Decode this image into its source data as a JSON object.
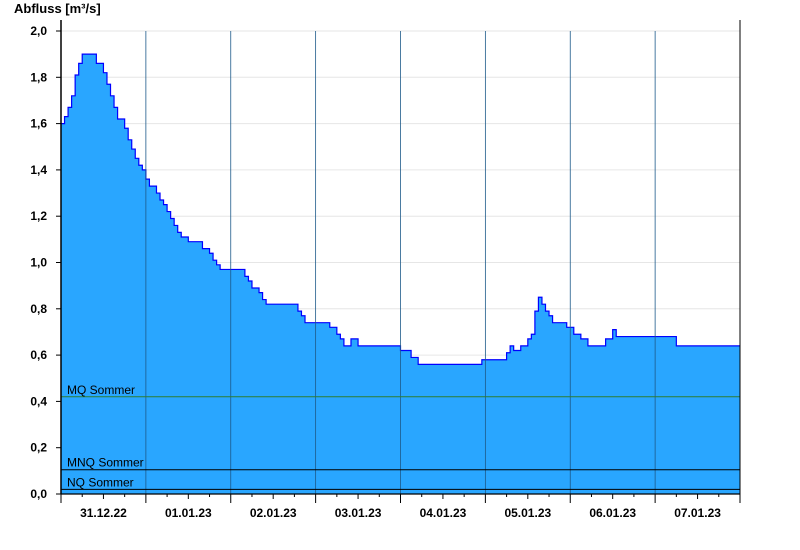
{
  "chart_data": {
    "type": "area",
    "ylabel": "Abfluss [m³/s]",
    "ylim": [
      0,
      2.0
    ],
    "yticks": [
      "0,0",
      "0,2",
      "0,4",
      "0,6",
      "0,8",
      "1,0",
      "1,2",
      "1,4",
      "1,6",
      "1,8",
      "2,0"
    ],
    "xlim": [
      "2022-12-31T00:00",
      "2023-01-08T00:00"
    ],
    "xtick_labels": [
      "31.12.22",
      "01.01.23",
      "02.01.23",
      "03.01.23",
      "04.01.23",
      "05.01.23",
      "06.01.23",
      "07.01.23"
    ],
    "grid": true,
    "colors": {
      "fill": "#29a6ff",
      "line": "#0000ff"
    },
    "reference_lines": [
      {
        "label": "MQ Sommer",
        "value": 0.42,
        "color": "#2e7d32"
      },
      {
        "label": "MNQ Sommer",
        "value": 0.105,
        "color": "#000000"
      },
      {
        "label": "NQ Sommer",
        "value": 0.02,
        "color": "#000000"
      }
    ],
    "series": [
      {
        "x": [
          "2022-12-31T00:00",
          "2022-12-31T01:00",
          "2022-12-31T02:00",
          "2022-12-31T03:00",
          "2022-12-31T04:00",
          "2022-12-31T05:00",
          "2022-12-31T06:00",
          "2022-12-31T10:00",
          "2022-12-31T12:00",
          "2022-12-31T13:00",
          "2022-12-31T14:00",
          "2022-12-31T15:00",
          "2022-12-31T16:00",
          "2022-12-31T18:00",
          "2022-12-31T19:00",
          "2022-12-31T20:00",
          "2022-12-31T21:00",
          "2022-12-31T22:00",
          "2022-12-31T23:00",
          "2023-01-01T00:00",
          "2023-01-01T01:00",
          "2023-01-01T03:00",
          "2023-01-01T04:00",
          "2023-01-01T05:00",
          "2023-01-01T06:00",
          "2023-01-01T07:00",
          "2023-01-01T08:00",
          "2023-01-01T09:00",
          "2023-01-01T10:00",
          "2023-01-01T12:00",
          "2023-01-01T16:00",
          "2023-01-01T18:00",
          "2023-01-01T19:00",
          "2023-01-01T20:00",
          "2023-01-01T21:00",
          "2023-01-02T04:00",
          "2023-01-02T05:00",
          "2023-01-02T06:00",
          "2023-01-02T08:00",
          "2023-01-02T09:00",
          "2023-01-02T10:00",
          "2023-01-02T19:00",
          "2023-01-02T20:00",
          "2023-01-02T21:00",
          "2023-01-03T04:00",
          "2023-01-03T06:00",
          "2023-01-03T07:00",
          "2023-01-03T08:00",
          "2023-01-03T10:00",
          "2023-01-03T12:00",
          "2023-01-04T00:00",
          "2023-01-04T03:00",
          "2023-01-04T05:00",
          "2023-01-04T23:00",
          "2023-01-05T06:00",
          "2023-01-05T07:00",
          "2023-01-05T08:00",
          "2023-01-05T10:00",
          "2023-01-05T12:00",
          "2023-01-05T13:00",
          "2023-01-05T14:00",
          "2023-01-05T15:00",
          "2023-01-05T16:00",
          "2023-01-05T17:00",
          "2023-01-05T18:00",
          "2023-01-05T19:00",
          "2023-01-05T23:00",
          "2023-01-06T01:00",
          "2023-01-06T03:00",
          "2023-01-06T05:00",
          "2023-01-06T10:00",
          "2023-01-06T12:00",
          "2023-01-06T13:00",
          "2023-01-07T06:00",
          "2023-01-08T00:00"
        ],
        "y": [
          1.6,
          1.63,
          1.67,
          1.72,
          1.81,
          1.86,
          1.9,
          1.86,
          1.82,
          1.77,
          1.72,
          1.67,
          1.62,
          1.58,
          1.53,
          1.49,
          1.45,
          1.42,
          1.4,
          1.36,
          1.33,
          1.3,
          1.27,
          1.25,
          1.22,
          1.19,
          1.16,
          1.13,
          1.11,
          1.09,
          1.06,
          1.04,
          1.01,
          0.99,
          0.97,
          0.94,
          0.92,
          0.89,
          0.87,
          0.84,
          0.82,
          0.79,
          0.77,
          0.74,
          0.72,
          0.69,
          0.67,
          0.64,
          0.67,
          0.64,
          0.62,
          0.59,
          0.56,
          0.58,
          0.61,
          0.64,
          0.62,
          0.64,
          0.67,
          0.69,
          0.79,
          0.85,
          0.82,
          0.79,
          0.77,
          0.74,
          0.72,
          0.69,
          0.67,
          0.64,
          0.67,
          0.71,
          0.68,
          0.64,
          0.64
        ]
      }
    ]
  }
}
